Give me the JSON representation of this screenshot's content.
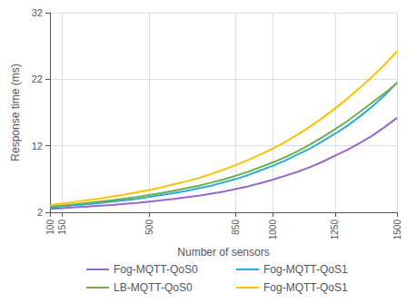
{
  "chart_data": {
    "type": "line",
    "xlabel": "Number of sensors",
    "ylabel": "Response time (ms)",
    "x": [
      100,
      150,
      200,
      250,
      300,
      350,
      400,
      450,
      500,
      550,
      600,
      650,
      700,
      750,
      800,
      850,
      900,
      950,
      1000,
      1050,
      1100,
      1150,
      1200,
      1250,
      1300,
      1350,
      1400,
      1450,
      1500
    ],
    "series": [
      {
        "name": "Fog-MQTT-QoS0",
        "color": "#9966CC",
        "values": [
          2.5,
          2.6,
          2.75,
          2.85,
          3.0,
          3.1,
          3.25,
          3.4,
          3.6,
          3.8,
          4.0,
          4.25,
          4.5,
          4.8,
          5.1,
          5.5,
          5.9,
          6.4,
          6.9,
          7.5,
          8.1,
          8.8,
          9.6,
          10.5,
          11.4,
          12.4,
          13.5,
          14.8,
          16.2
        ]
      },
      {
        "name": "Fog-MQTT-QoS1",
        "color": "#29ABE2",
        "values": [
          2.75,
          2.9,
          3.05,
          3.2,
          3.4,
          3.6,
          3.8,
          4.0,
          4.3,
          4.6,
          4.9,
          5.2,
          5.6,
          6.0,
          6.5,
          7.0,
          7.6,
          8.3,
          9.0,
          9.8,
          10.7,
          11.6,
          12.7,
          13.8,
          15.0,
          16.4,
          17.9,
          19.6,
          21.5
        ]
      },
      {
        "name": "LB-MQTT-QoS0",
        "color": "#70AD47",
        "values": [
          2.85,
          3.0,
          3.2,
          3.4,
          3.6,
          3.8,
          4.05,
          4.3,
          4.6,
          4.9,
          5.25,
          5.6,
          6.0,
          6.45,
          6.95,
          7.5,
          8.1,
          8.8,
          9.5,
          10.3,
          11.2,
          12.2,
          13.3,
          14.5,
          15.7,
          17.1,
          18.5,
          19.9,
          21.4
        ]
      },
      {
        "name": "Fog-MQTT-QoS1",
        "color": "#FFC000",
        "values": [
          3.1,
          3.3,
          3.55,
          3.8,
          4.05,
          4.35,
          4.65,
          5.0,
          5.35,
          5.75,
          6.2,
          6.65,
          7.15,
          7.75,
          8.4,
          9.1,
          9.85,
          10.7,
          11.6,
          12.6,
          13.7,
          14.9,
          16.2,
          17.6,
          19.1,
          20.7,
          22.4,
          24.2,
          26.2
        ]
      }
    ],
    "xlim": [
      100,
      1500
    ],
    "xticks": [
      100,
      150,
      500,
      850,
      1000,
      1250,
      1500
    ],
    "ylim": [
      2,
      32
    ],
    "yticks": [
      2,
      12,
      22,
      32
    ],
    "grid": true,
    "legend": "bottom"
  }
}
